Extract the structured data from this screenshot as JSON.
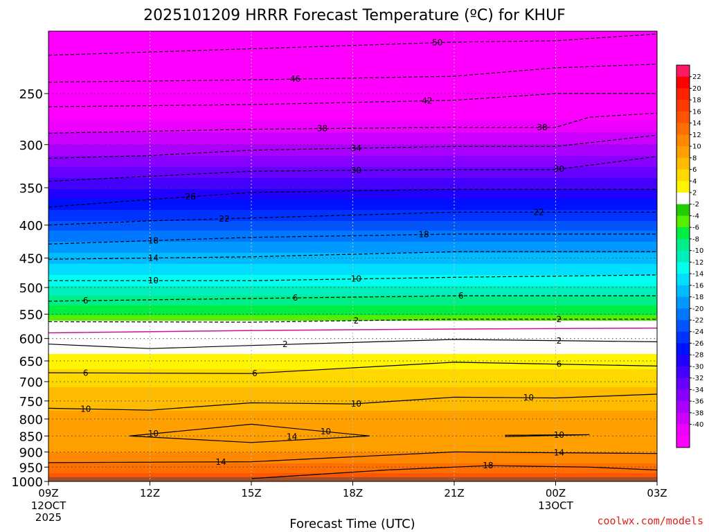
{
  "chart_data": {
    "type": "heatmap",
    "title": "2025101209 HRRR Forecast Temperature (ºC) for KHUF",
    "xlabel": "Forecast Time (UTC)",
    "ylabel": "",
    "x_ticks": [
      {
        "label": "09Z",
        "sub": [
          "12OCT",
          "2025"
        ],
        "hour": 0
      },
      {
        "label": "12Z",
        "sub": [],
        "hour": 3
      },
      {
        "label": "15Z",
        "sub": [],
        "hour": 6
      },
      {
        "label": "18Z",
        "sub": [],
        "hour": 9
      },
      {
        "label": "21Z",
        "sub": [],
        "hour": 12
      },
      {
        "label": "00Z",
        "sub": [
          "13OCT"
        ],
        "hour": 15
      },
      {
        "label": "03Z",
        "sub": [],
        "hour": 18
      }
    ],
    "xlim": [
      0,
      18
    ],
    "y_axis": "pressure (hPa), log scale, inverted",
    "ylim": [
      1000,
      200
    ],
    "y_ticks": [
      250,
      300,
      350,
      400,
      450,
      500,
      550,
      600,
      650,
      700,
      750,
      800,
      850,
      900,
      950,
      1000
    ],
    "colorbar": {
      "labels": [
        "22",
        "20",
        "18",
        "16",
        "14",
        "12",
        "10",
        "8",
        "6",
        "4",
        "2",
        "-2",
        "-4",
        "-6",
        "-8",
        "-10",
        "-12",
        "-14",
        "-16",
        "-18",
        "-20",
        "-22",
        "-24",
        "-26",
        "-28",
        "-30",
        "-32",
        "-34",
        "-36",
        "-38",
        "-40"
      ],
      "colors": [
        "#ff1a66",
        "#ff0000",
        "#ff2200",
        "#ff3a00",
        "#ff5500",
        "#ff6e00",
        "#ff8800",
        "#ffa000",
        "#ffbb00",
        "#ffd800",
        "#fff500",
        "#ffffff",
        "#22cc00",
        "#55ee00",
        "#00ee44",
        "#00ee88",
        "#00eebb",
        "#00ffee",
        "#00ddff",
        "#00bbff",
        "#0099ff",
        "#0077ff",
        "#0055ff",
        "#0033ff",
        "#0011ff",
        "#2200ff",
        "#4400ff",
        "#6600ff",
        "#8800ff",
        "#aa00ff",
        "#cc00ff",
        "#ee00ff",
        "#ff00ff"
      ]
    },
    "profile_temp_c": [
      {
        "p": 1000,
        "t": 17.0
      },
      {
        "p": 950,
        "t": 14.0
      },
      {
        "p": 900,
        "t": 11.0
      },
      {
        "p": 850,
        "t": 10.0
      },
      {
        "p": 800,
        "t": 9.5
      },
      {
        "p": 750,
        "t": 8.5
      },
      {
        "p": 700,
        "t": 6.5
      },
      {
        "p": 650,
        "t": 4.0
      },
      {
        "p": 600,
        "t": 1.0
      },
      {
        "p": 550,
        "t": -3.0
      },
      {
        "p": 500,
        "t": -8.5
      },
      {
        "p": 450,
        "t": -14.0
      },
      {
        "p": 400,
        "t": -20.0
      },
      {
        "p": 350,
        "t": -27.0
      },
      {
        "p": 300,
        "t": -35.0
      },
      {
        "p": 250,
        "t": -43.0
      },
      {
        "p": 200,
        "t": -52.0
      }
    ],
    "contours": [
      {
        "label": "-50",
        "label_hour": 11.5,
        "style": "dashed",
        "points": [
          [
            0,
            218
          ],
          [
            6,
            213
          ],
          [
            12,
            208
          ],
          [
            15,
            207
          ],
          [
            18,
            202
          ]
        ]
      },
      {
        "label": "-46",
        "label_hour": 7.3,
        "style": "dashed",
        "points": [
          [
            0,
            240
          ],
          [
            6,
            238
          ],
          [
            12,
            235
          ],
          [
            15,
            228
          ],
          [
            18,
            225
          ]
        ]
      },
      {
        "label": "-42",
        "label_hour": 11.2,
        "style": "dashed",
        "points": [
          [
            0,
            262
          ],
          [
            6,
            260
          ],
          [
            12,
            256
          ],
          [
            15,
            250
          ],
          [
            18,
            250
          ]
        ]
      },
      {
        "label": "-38",
        "label_hour": 8.1,
        "style": "dashed",
        "points": [
          [
            0,
            288
          ],
          [
            6,
            284
          ],
          [
            12,
            282
          ],
          [
            15,
            282
          ],
          [
            16,
            272
          ],
          [
            18,
            268
          ]
        ]
      },
      {
        "label": "-38",
        "label_hour": 14.6,
        "style": "none",
        "points": []
      },
      {
        "label": "-34",
        "label_hour": 9.1,
        "style": "dashed",
        "points": [
          [
            0,
            315
          ],
          [
            3,
            312
          ],
          [
            6,
            306
          ],
          [
            12,
            302
          ],
          [
            15,
            302
          ],
          [
            18,
            290
          ]
        ]
      },
      {
        "label": "-30",
        "label_hour": 9.1,
        "style": "dashed",
        "points": [
          [
            0,
            342
          ],
          [
            3,
            336
          ],
          [
            6,
            330
          ],
          [
            12,
            328
          ],
          [
            15,
            328
          ],
          [
            18,
            313
          ]
        ]
      },
      {
        "label": "-30",
        "label_hour": 15.1,
        "style": "none",
        "points": []
      },
      {
        "label": "-26",
        "label_hour": 4.2,
        "style": "dashed",
        "points": [
          [
            0,
            375
          ],
          [
            3,
            365
          ],
          [
            6,
            356
          ],
          [
            12,
            352
          ],
          [
            18,
            352
          ]
        ]
      },
      {
        "label": "-22",
        "label_hour": 5.2,
        "style": "dashed",
        "points": [
          [
            0,
            400
          ],
          [
            3,
            394
          ],
          [
            6,
            390
          ],
          [
            12,
            382
          ],
          [
            18,
            382
          ]
        ]
      },
      {
        "label": "-22",
        "label_hour": 14.5,
        "style": "none",
        "points": []
      },
      {
        "label": "-18",
        "label_hour": 11.1,
        "style": "dashed",
        "points": [
          [
            0,
            428
          ],
          [
            6,
            418
          ],
          [
            12,
            413
          ],
          [
            18,
            413
          ]
        ]
      },
      {
        "label": "-18",
        "label_hour": 3.1,
        "style": "none",
        "points": []
      },
      {
        "label": "-14",
        "label_hour": 3.1,
        "style": "dashed",
        "points": [
          [
            0,
            452
          ],
          [
            6,
            448
          ],
          [
            12,
            440
          ],
          [
            18,
            440
          ]
        ]
      },
      {
        "label": "-10",
        "label_hour": 3.1,
        "style": "dashed",
        "points": [
          [
            0,
            488
          ],
          [
            6,
            488
          ],
          [
            12,
            482
          ],
          [
            18,
            478
          ]
        ]
      },
      {
        "label": "-10",
        "label_hour": 9.1,
        "style": "none",
        "points": []
      },
      {
        "label": "-6",
        "label_hour": 1.1,
        "style": "dashed",
        "points": [
          [
            0,
            525
          ],
          [
            6,
            520
          ],
          [
            12,
            515
          ],
          [
            18,
            515
          ]
        ]
      },
      {
        "label": "-6",
        "label_hour": 7.3,
        "style": "none",
        "points": []
      },
      {
        "label": "-6",
        "label_hour": 12.2,
        "style": "none",
        "points": []
      },
      {
        "label": "-2",
        "label_hour": 9.1,
        "style": "dashed",
        "points": [
          [
            0,
            565
          ],
          [
            6,
            566
          ],
          [
            12,
            560
          ],
          [
            18,
            560
          ]
        ]
      },
      {
        "label": "-2",
        "label_hour": 15.1,
        "style": "none",
        "points": []
      },
      {
        "label": "0",
        "label_hour": -1,
        "style": "magenta",
        "points": [
          [
            0,
            588
          ],
          [
            6,
            583
          ],
          [
            12,
            580
          ],
          [
            18,
            578
          ]
        ]
      },
      {
        "label": "2",
        "label_hour": 7.0,
        "style": "solid",
        "points": [
          [
            0,
            612
          ],
          [
            3,
            622
          ],
          [
            6,
            615
          ],
          [
            12,
            602
          ],
          [
            18,
            607
          ]
        ]
      },
      {
        "label": "2",
        "label_hour": 15.1,
        "style": "none",
        "points": []
      },
      {
        "label": "6",
        "label_hour": 1.1,
        "style": "solid",
        "points": [
          [
            0,
            678
          ],
          [
            6,
            680
          ],
          [
            12,
            653
          ],
          [
            18,
            662
          ]
        ]
      },
      {
        "label": "6",
        "label_hour": 6.1,
        "style": "none",
        "points": []
      },
      {
        "label": "6",
        "label_hour": 15.1,
        "style": "none",
        "points": []
      },
      {
        "label": "10",
        "label_hour": 1.1,
        "style": "solid",
        "points": [
          [
            0,
            770
          ],
          [
            3,
            775
          ],
          [
            6,
            755
          ],
          [
            9,
            758
          ],
          [
            12,
            740
          ],
          [
            15,
            742
          ],
          [
            18,
            732
          ]
        ]
      },
      {
        "label": "10",
        "label_hour": 9.1,
        "style": "none",
        "points": []
      },
      {
        "label": "10",
        "label_hour": 14.2,
        "style": "none",
        "points": []
      },
      {
        "label": "14",
        "label_hour": 5.1,
        "style": "solid",
        "points": [
          [
            0,
            935
          ],
          [
            6,
            932
          ],
          [
            12,
            900
          ],
          [
            18,
            905
          ]
        ]
      },
      {
        "label": "14",
        "label_hour": 15.1,
        "style": "none",
        "points": []
      },
      {
        "label": "18",
        "label_hour": 13.0,
        "style": "solid",
        "points": [
          [
            6,
            990
          ],
          [
            10,
            960
          ],
          [
            13,
            945
          ],
          [
            16,
            950
          ],
          [
            18,
            960
          ]
        ]
      }
    ],
    "closed_contours": [
      {
        "label": "10",
        "label_hour": 3.1,
        "points": [
          [
            2.4,
            850
          ],
          [
            6,
            815
          ],
          [
            9.5,
            850
          ],
          [
            6,
            870
          ],
          [
            2.4,
            850
          ]
        ]
      },
      {
        "label": "10",
        "label_hour": 8.2,
        "points": []
      },
      {
        "label": "10",
        "label_hour": 15.1,
        "points": [
          [
            13.5,
            848
          ],
          [
            16,
            846
          ],
          [
            13.5,
            852
          ]
        ]
      },
      {
        "label": "14",
        "label_hour": 7.2,
        "points": []
      }
    ]
  },
  "footer": {
    "credit": "coolwx.com/models"
  }
}
